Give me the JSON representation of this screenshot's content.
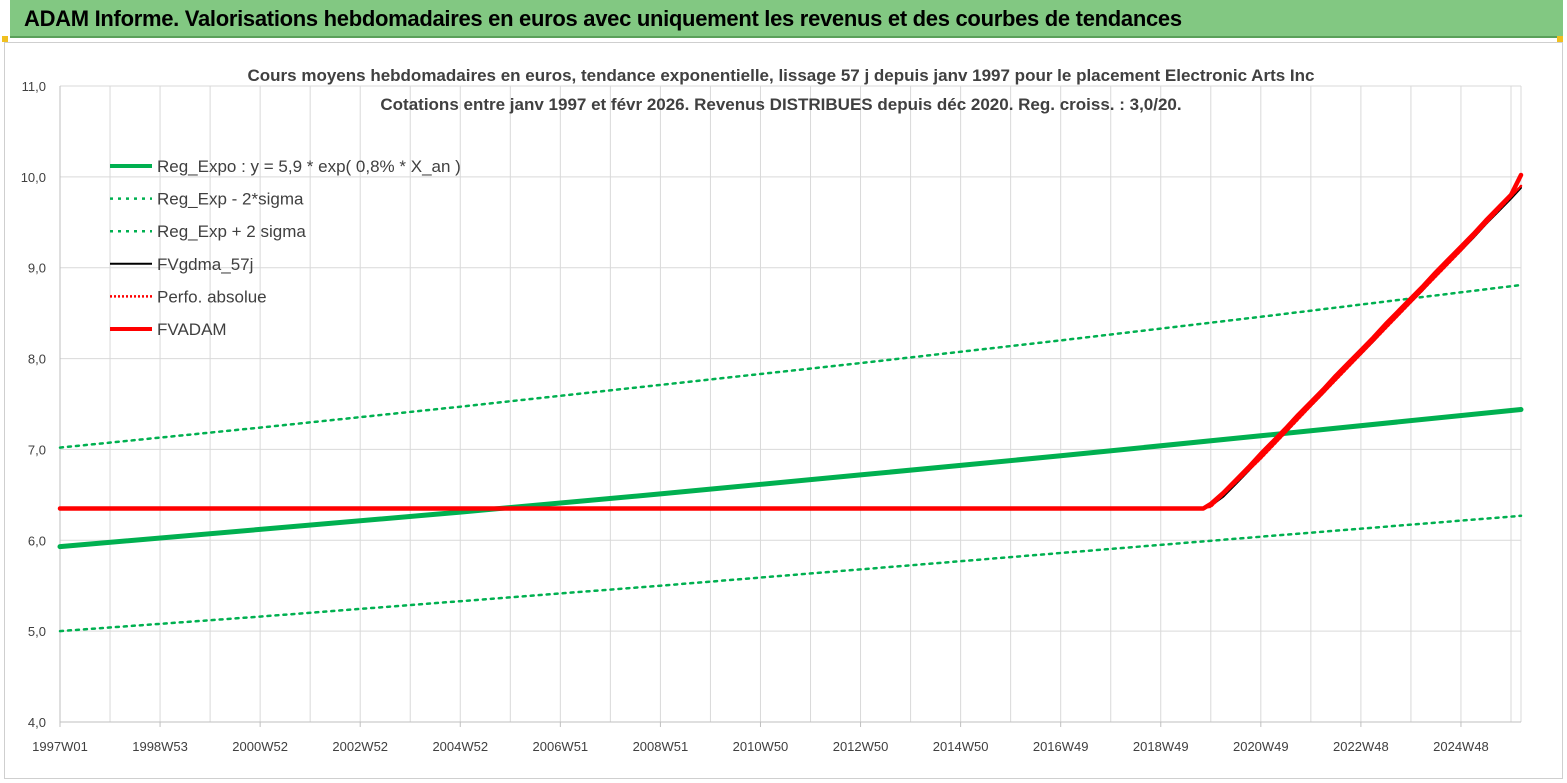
{
  "header": {
    "title": "ADAM Informe. Valorisations hebdomadaires en euros avec uniquement les revenus et des courbes de tendances"
  },
  "chart_data": {
    "type": "line",
    "title": "Cours moyens hebdomadaires en euros, tendance exponentielle, lissage 57 j depuis janv 1997 pour le placement Electronic Arts Inc",
    "subtitle": "Cotations entre janv 1997 et févr 2026. Revenus DISTRIBUES depuis déc 2020. Reg. croiss. : 3,0/20.",
    "xlabel": "",
    "ylabel": "",
    "x_tick_labels": [
      "1997W01",
      "1998W53",
      "2000W52",
      "2002W52",
      "2004W52",
      "2006W51",
      "2008W51",
      "2010W50",
      "2012W50",
      "2014W50",
      "2016W49",
      "2018W49",
      "2020W49",
      "2022W48",
      "2024W48"
    ],
    "x_tick_years": [
      1997.0,
      1999.0,
      2001.0,
      2003.0,
      2005.0,
      2007.0,
      2009.0,
      2011.0,
      2013.0,
      2015.0,
      2017.0,
      2019.0,
      2021.0,
      2023.0,
      2025.0
    ],
    "xlim": [
      1997.0,
      2026.2
    ],
    "y_tick_labels": [
      "4,0",
      "5,0",
      "6,0",
      "7,0",
      "8,0",
      "9,0",
      "10,0",
      "11,0"
    ],
    "ylim": [
      4.0,
      11.0
    ],
    "grid": true,
    "legend_position": "top-left",
    "series": [
      {
        "name": "Reg_Expo : y = 5,9 * exp( 0,8% *  X_an )",
        "style": "solid-thick",
        "color": "#00b050",
        "x": [
          1997.0,
          2001.0,
          2005.0,
          2009.0,
          2013.0,
          2017.0,
          2021.0,
          2026.2
        ],
        "y": [
          5.93,
          6.12,
          6.31,
          6.51,
          6.72,
          6.93,
          7.15,
          7.44
        ]
      },
      {
        "name": "Reg_Exp - 2*sigma",
        "style": "dotted",
        "color": "#00b050",
        "x": [
          1997.0,
          2001.0,
          2005.0,
          2009.0,
          2013.0,
          2017.0,
          2021.0,
          2026.2
        ],
        "y": [
          5.0,
          5.16,
          5.33,
          5.5,
          5.68,
          5.86,
          6.04,
          6.27
        ]
      },
      {
        "name": "Reg_Exp + 2 sigma",
        "style": "dotted",
        "color": "#00b050",
        "x": [
          1997.0,
          2001.0,
          2005.0,
          2009.0,
          2013.0,
          2017.0,
          2021.0,
          2026.2
        ],
        "y": [
          7.02,
          7.24,
          7.47,
          7.71,
          7.95,
          8.2,
          8.46,
          8.81
        ]
      },
      {
        "name": "FVgdma_57j",
        "style": "solid",
        "color": "#000000",
        "x": [
          1997.0,
          2019.75,
          2020.0,
          2020.25,
          2020.5,
          2020.75,
          2021.0,
          2021.25,
          2021.5,
          2021.75,
          2022.0,
          2022.25,
          2022.5,
          2022.75,
          2023.0,
          2023.25,
          2023.5,
          2023.75,
          2024.0,
          2024.25,
          2024.5,
          2024.75,
          2025.0,
          2025.25,
          2025.5,
          2025.75,
          2026.0,
          2026.2
        ],
        "y": [
          6.35,
          6.35,
          6.38,
          6.48,
          6.62,
          6.76,
          6.91,
          7.05,
          7.19,
          7.34,
          7.48,
          7.62,
          7.77,
          7.91,
          8.05,
          8.19,
          8.34,
          8.48,
          8.62,
          8.76,
          8.91,
          9.05,
          9.19,
          9.33,
          9.48,
          9.62,
          9.76,
          9.88
        ]
      },
      {
        "name": "Perfo. absolue",
        "style": "dotted",
        "color": "#ff0000",
        "x": [
          1997.0,
          2019.75,
          2020.0,
          2021.0,
          2022.0,
          2023.0,
          2024.0,
          2025.0,
          2026.2
        ],
        "y": [
          6.35,
          6.35,
          6.37,
          6.9,
          7.48,
          8.05,
          8.62,
          9.19,
          9.9
        ]
      },
      {
        "name": "FVADAM",
        "style": "solid-thick",
        "color": "#ff0000",
        "x": [
          1997.0,
          2019.85,
          2020.0,
          2020.25,
          2020.5,
          2020.75,
          2021.0,
          2021.25,
          2021.5,
          2021.75,
          2022.0,
          2022.25,
          2022.5,
          2022.75,
          2023.0,
          2023.25,
          2023.5,
          2023.75,
          2024.0,
          2024.25,
          2024.5,
          2024.75,
          2025.0,
          2025.25,
          2025.5,
          2025.75,
          2026.0,
          2026.2
        ],
        "y": [
          6.35,
          6.35,
          6.4,
          6.52,
          6.66,
          6.8,
          6.95,
          7.09,
          7.23,
          7.38,
          7.52,
          7.66,
          7.81,
          7.95,
          8.09,
          8.23,
          8.38,
          8.52,
          8.66,
          8.8,
          8.95,
          9.09,
          9.23,
          9.37,
          9.52,
          9.66,
          9.8,
          10.02
        ]
      }
    ]
  },
  "colors": {
    "banner_bg": "#82c882",
    "grid": "#d9d9d9",
    "text": "#404040"
  }
}
